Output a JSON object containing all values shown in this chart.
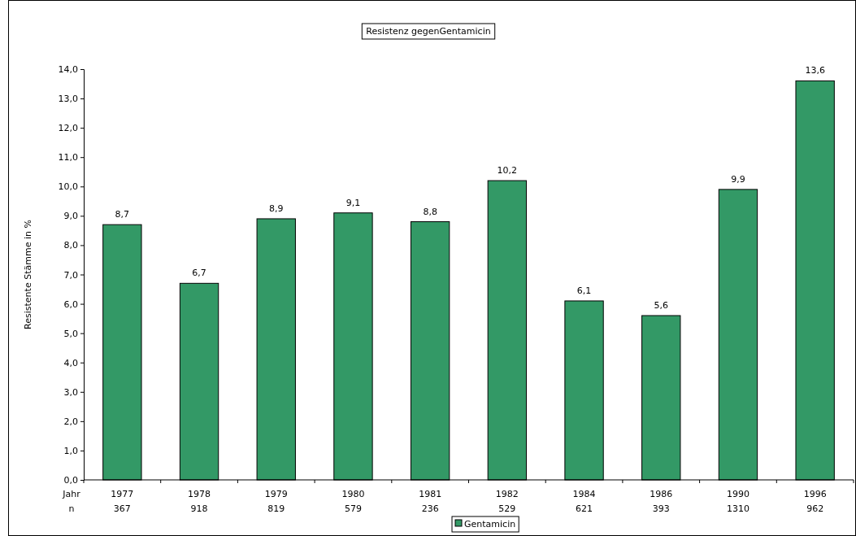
{
  "chart_data": {
    "type": "bar",
    "title": "Resistenz gegenGentamicin",
    "ylabel": "Resistente Stämme in %",
    "xlabel": "Jahr\nn",
    "categories": [
      "1977\n367",
      "1978\n918",
      "1979\n819",
      "1980\n579",
      "1981\n236",
      "1982\n529",
      "1984\n621",
      "1986\n393",
      "1990\n1310",
      "1996\n962"
    ],
    "series": [
      {
        "name": "Gentamicin",
        "color": "#339966",
        "values": [
          8.7,
          6.7,
          8.9,
          9.1,
          8.8,
          10.2,
          6.1,
          5.6,
          9.9,
          13.6
        ],
        "value_labels": [
          "8,7",
          "6,7",
          "8,9",
          "9,1",
          "8,8",
          "10,2",
          "6,1",
          "5,6",
          "9,9",
          "13,6"
        ]
      }
    ],
    "ylim": [
      0,
      14
    ],
    "yticks": [
      {
        "value": 0,
        "label": "0,0"
      },
      {
        "value": 1,
        "label": "1,0"
      },
      {
        "value": 2,
        "label": "2,0"
      },
      {
        "value": 3,
        "label": "3,0"
      },
      {
        "value": 4,
        "label": "4,0"
      },
      {
        "value": 5,
        "label": "5,0"
      },
      {
        "value": 6,
        "label": "6,0"
      },
      {
        "value": 7,
        "label": "7,0"
      },
      {
        "value": 8,
        "label": "8,0"
      },
      {
        "value": 9,
        "label": "9,0"
      },
      {
        "value": 10,
        "label": "10,0"
      },
      {
        "value": 11,
        "label": "11,0"
      },
      {
        "value": 12,
        "label": "12,0"
      },
      {
        "value": 13,
        "label": "13,0"
      },
      {
        "value": 14,
        "label": "14,0"
      }
    ],
    "legend": "bottom",
    "grid": false
  }
}
